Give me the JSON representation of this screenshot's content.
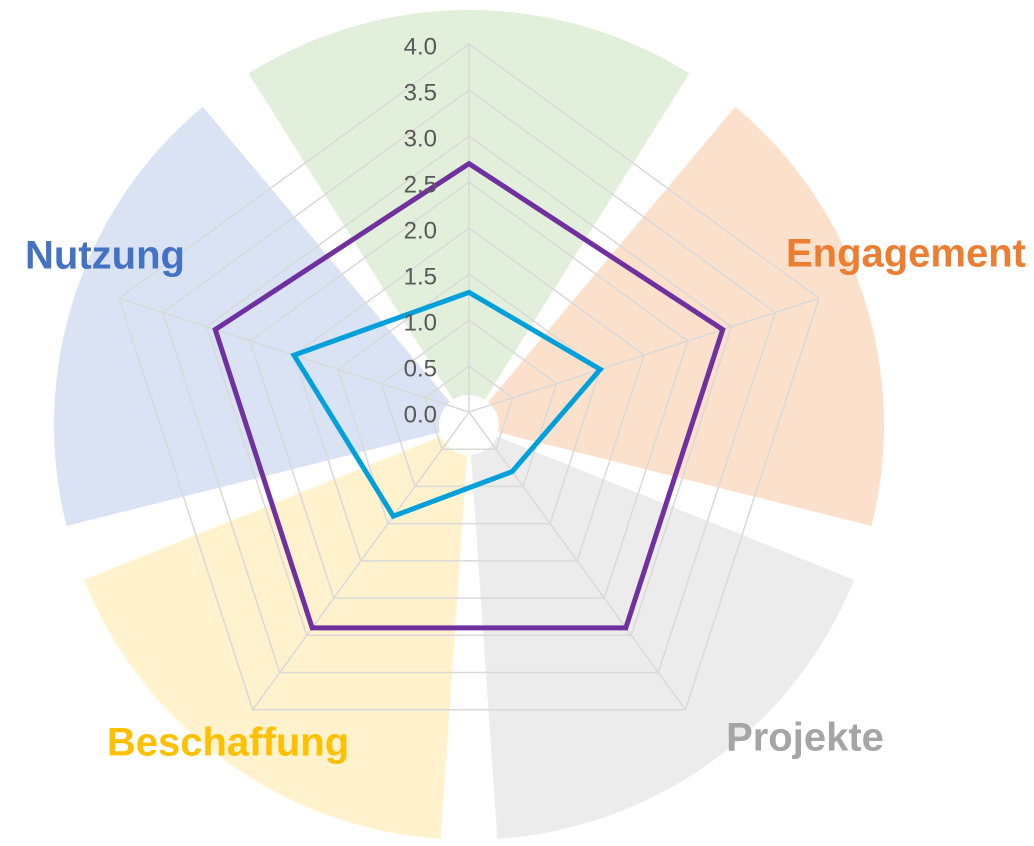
{
  "chart_data": {
    "type": "radar",
    "categories": [
      null,
      "Engagement",
      "Projekte",
      "Beschaffung",
      "Nutzung"
    ],
    "category_colors": [
      "#70ad47",
      "#ed7d31",
      "#a5a5a5",
      "#ffc000",
      "#4472c4"
    ],
    "series": [
      {
        "color": "#7030a0",
        "values": [
          2.7,
          2.9,
          2.9,
          2.9,
          2.9
        ]
      },
      {
        "color": "#00a0dc",
        "values": [
          1.3,
          1.5,
          0.8,
          1.4,
          2.0
        ]
      }
    ],
    "ylim": [
      0,
      4
    ],
    "yticks": [
      {
        "value": 0,
        "label": "0.0"
      },
      0.5,
      {
        "value": 1,
        "label": "1.0"
      },
      1.5,
      {
        "value": 2,
        "label": "2.0"
      },
      2.5,
      {
        "value": 3,
        "label": "3.0"
      },
      3.5,
      {
        "value": 4,
        "label": "4.0"
      }
    ],
    "grid": true
  }
}
